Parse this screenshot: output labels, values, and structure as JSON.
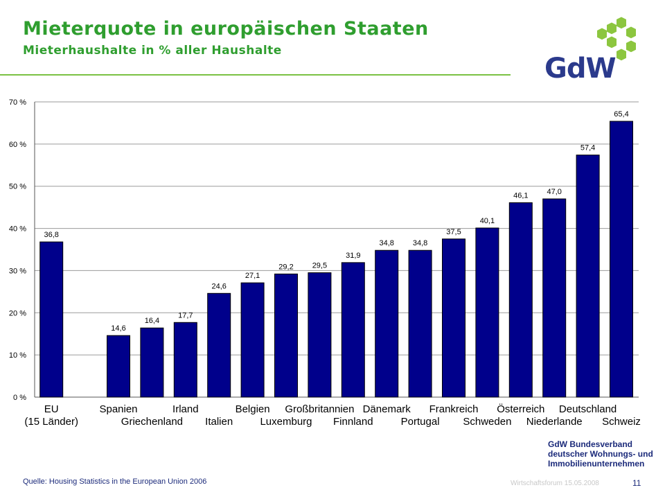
{
  "header": {
    "title": "Mieterquote in europäischen Staaten",
    "subtitle": "Mieterhaushalte in % aller Haushalte"
  },
  "colors": {
    "title": "#2f9e2f",
    "rule": "#7ac143",
    "bar": "#00008b",
    "logo_green": "#8cc63f",
    "logo_text": "#2b3a8c"
  },
  "logo": {
    "text": "GdW"
  },
  "chart_data": {
    "type": "bar",
    "categories": [
      "EU (15 Länder)",
      "Spanien",
      "Griechenland",
      "Irland",
      "Italien",
      "Belgien",
      "Luxemburg",
      "Großbritannien",
      "Finnland",
      "Dänemark",
      "Portugal",
      "Frankreich",
      "Schweden",
      "Österreich",
      "Niederlande",
      "Deutschland",
      "Schweiz"
    ],
    "values": [
      36.8,
      14.6,
      16.4,
      17.7,
      24.6,
      27.1,
      29.2,
      29.5,
      31.9,
      34.8,
      34.8,
      37.5,
      40.1,
      46.1,
      47.0,
      57.4,
      65.4
    ],
    "value_labels": [
      "36,8",
      "14,6",
      "16,4",
      "17,7",
      "24,6",
      "27,1",
      "29,2",
      "29,5",
      "31,9",
      "34,8",
      "34,8",
      "37,5",
      "40,1",
      "46,1",
      "47,0",
      "57,4",
      "65,4"
    ],
    "x_labels": [
      {
        "lines": [
          "EU",
          "(15 Länder)"
        ],
        "cat": 0
      },
      {
        "lines": [
          "Spanien"
        ],
        "cat": 1
      },
      {
        "lines": [
          "",
          "Griechenland"
        ],
        "cat": 2
      },
      {
        "lines": [
          "Irland"
        ],
        "cat": 3
      },
      {
        "lines": [
          "",
          "Italien"
        ],
        "cat": 4
      },
      {
        "lines": [
          "Belgien"
        ],
        "cat": 5
      },
      {
        "lines": [
          "",
          "Luxemburg"
        ],
        "cat": 6
      },
      {
        "lines": [
          "Großbritannien"
        ],
        "cat": 7
      },
      {
        "lines": [
          "",
          "Finnland"
        ],
        "cat": 8
      },
      {
        "lines": [
          "Dänemark"
        ],
        "cat": 9
      },
      {
        "lines": [
          "",
          "Portugal"
        ],
        "cat": 10
      },
      {
        "lines": [
          "Frankreich"
        ],
        "cat": 11
      },
      {
        "lines": [
          "",
          "Schweden"
        ],
        "cat": 12
      },
      {
        "lines": [
          "Österreich"
        ],
        "cat": 13
      },
      {
        "lines": [
          "",
          "Niederlande"
        ],
        "cat": 14
      },
      {
        "lines": [
          "Deutschland"
        ],
        "cat": 15
      },
      {
        "lines": [
          "",
          "Schweiz"
        ],
        "cat": 16
      }
    ],
    "yticks": [
      "0 %",
      "10 %",
      "20 %",
      "30 %",
      "40 %",
      "50 %",
      "60 %",
      "70 %"
    ],
    "ylim": [
      0,
      70
    ],
    "grid": true,
    "legend": "none"
  },
  "organization": {
    "lines": [
      "GdW Bundesverband",
      "deutscher Wohnungs- und",
      "Immobilienunternehmen"
    ]
  },
  "footer": {
    "source": "Quelle: Housing Statistics in the European Union 2006",
    "event": "Wirtschaftsforum 15.05.2008",
    "page_number": "11"
  }
}
